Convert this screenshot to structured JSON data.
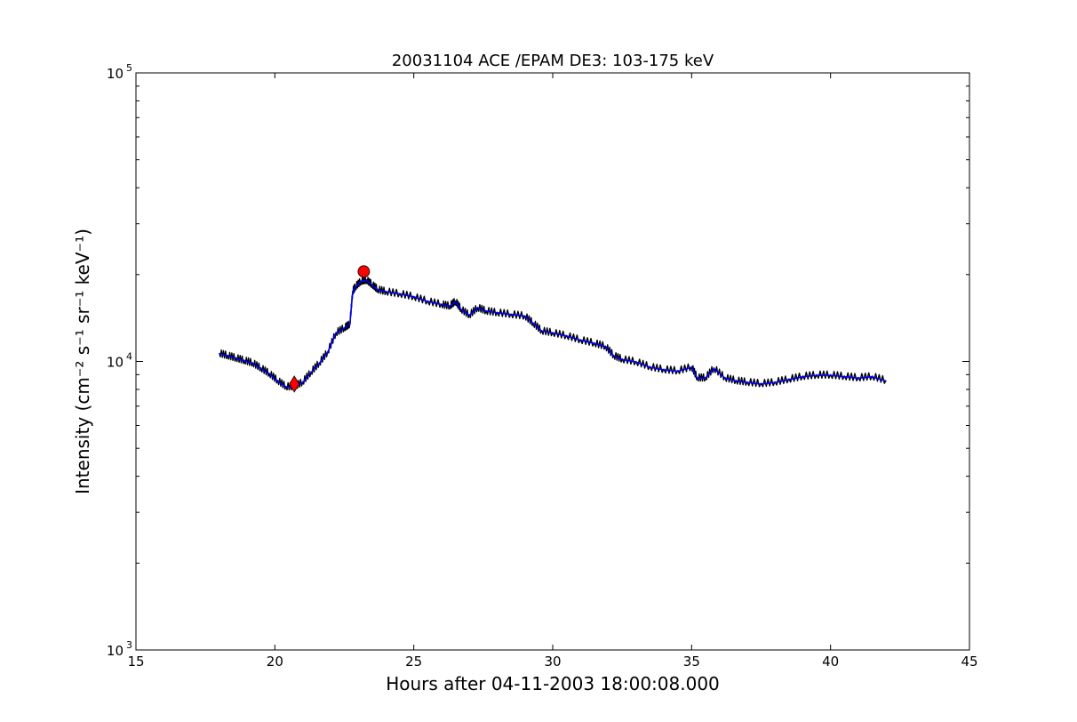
{
  "chart_data": {
    "type": "line",
    "title": "20031104 ACE /EPAM DE3: 103-175 keV",
    "xlabel": "Hours after 04-11-2003 18:00:08.000",
    "ylabel": "Intensity (cm⁻² s⁻¹ sr⁻¹ keV⁻¹)",
    "xlim": [
      15,
      45
    ],
    "ylim": [
      1000,
      100000
    ],
    "yscale": "log",
    "grid": false,
    "x_ticks": [
      15,
      20,
      25,
      30,
      35,
      40,
      45
    ],
    "x_tick_labels": [
      "15",
      "20",
      "25",
      "30",
      "35",
      "40",
      "45"
    ],
    "y_ticks": [
      1000,
      10000,
      100000
    ],
    "y_tick_labels": [
      {
        "base": "10",
        "exp": "3"
      },
      {
        "base": "10",
        "exp": "4"
      },
      {
        "base": "10",
        "exp": "5"
      }
    ],
    "series": [
      {
        "color": "#000000",
        "style": "raw",
        "x": [
          18.0,
          18.3,
          18.6,
          18.9,
          19.2,
          19.5,
          19.8,
          20.1,
          20.4,
          20.7,
          21.0,
          21.3,
          21.6,
          21.9,
          22.2,
          22.5,
          22.7,
          22.8,
          22.9,
          23.1,
          23.3,
          23.5,
          23.7,
          24.0,
          24.5,
          25.0,
          25.5,
          26.0,
          26.3,
          26.5,
          26.7,
          27.0,
          27.3,
          27.6,
          28.0,
          28.5,
          29.0,
          29.3,
          29.6,
          30.0,
          30.5,
          31.0,
          31.5,
          31.9,
          32.2,
          32.5,
          33.0,
          33.5,
          34.0,
          34.5,
          35.0,
          35.2,
          35.5,
          35.8,
          36.2,
          36.6,
          37.0,
          37.5,
          38.0,
          38.5,
          39.0,
          39.5,
          40.0,
          40.5,
          41.0,
          41.5,
          42.0
        ],
        "y": [
          10700,
          10500,
          10300,
          10100,
          9900,
          9500,
          9100,
          8600,
          8200,
          8200,
          8500,
          9200,
          9900,
          10800,
          12600,
          13100,
          13500,
          17500,
          18200,
          19000,
          19200,
          18500,
          17800,
          17500,
          17200,
          16800,
          16200,
          15800,
          15600,
          16200,
          15200,
          14500,
          15400,
          15000,
          14800,
          14600,
          14400,
          13600,
          12800,
          12600,
          12300,
          11900,
          11600,
          11300,
          10500,
          10200,
          10000,
          9600,
          9400,
          9300,
          9600,
          8800,
          8800,
          9500,
          8800,
          8600,
          8500,
          8400,
          8500,
          8700,
          8900,
          9000,
          9000,
          8900,
          8800,
          8900,
          8600
        ]
      },
      {
        "color": "#0000ff",
        "style": "smoothed",
        "x": [
          18.0,
          18.3,
          18.6,
          18.9,
          19.2,
          19.5,
          19.8,
          20.1,
          20.4,
          20.7,
          21.0,
          21.3,
          21.6,
          21.9,
          22.2,
          22.5,
          22.7,
          22.8,
          22.9,
          23.1,
          23.3,
          23.5,
          23.7,
          24.0,
          24.5,
          25.0,
          25.5,
          26.0,
          26.3,
          26.5,
          26.7,
          27.0,
          27.3,
          27.6,
          28.0,
          28.5,
          29.0,
          29.3,
          29.6,
          30.0,
          30.5,
          31.0,
          31.5,
          31.9,
          32.2,
          32.5,
          33.0,
          33.5,
          34.0,
          34.5,
          35.0,
          35.2,
          35.5,
          35.8,
          36.2,
          36.6,
          37.0,
          37.5,
          38.0,
          38.5,
          39.0,
          39.5,
          40.0,
          40.5,
          41.0,
          41.5,
          42.0
        ],
        "y": [
          10650,
          10450,
          10250,
          10050,
          9850,
          9450,
          9050,
          8550,
          8150,
          8150,
          8450,
          9150,
          9850,
          10750,
          12550,
          13050,
          13450,
          17400,
          18100,
          18900,
          19100,
          18400,
          17700,
          17450,
          17150,
          16750,
          16150,
          15750,
          15550,
          16100,
          15150,
          14450,
          15350,
          14950,
          14750,
          14550,
          14350,
          13550,
          12750,
          12550,
          12250,
          11850,
          11550,
          11250,
          10450,
          10150,
          9950,
          9550,
          9350,
          9250,
          9550,
          8750,
          8750,
          9450,
          8750,
          8550,
          8450,
          8350,
          8450,
          8650,
          8850,
          8950,
          8950,
          8850,
          8750,
          8850,
          8550
        ]
      }
    ],
    "markers": [
      {
        "shape": "diamond",
        "x": 20.7,
        "y": 8350,
        "color": "#ff0000"
      },
      {
        "shape": "circle",
        "x": 23.2,
        "y": 20500,
        "color": "#ff0000"
      }
    ]
  }
}
